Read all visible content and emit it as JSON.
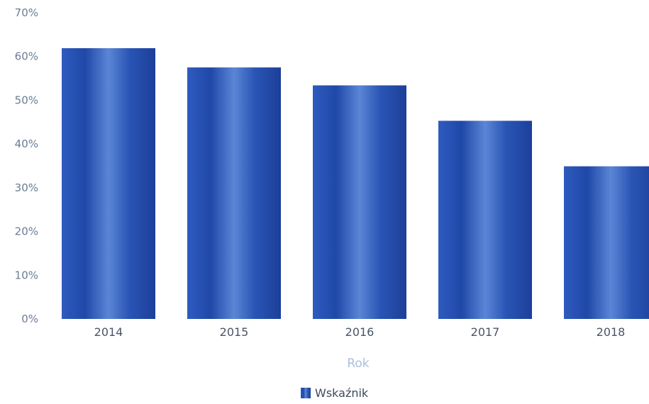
{
  "chart_data": {
    "type": "bar",
    "title": "",
    "xlabel": "Rok",
    "ylabel": "",
    "categories": [
      "2014",
      "2015",
      "2016",
      "2017",
      "2018"
    ],
    "series": [
      {
        "name": "Wskaźnik",
        "values": [
          61.9,
          57.5,
          53.4,
          45.3,
          34.9
        ]
      }
    ],
    "ylim": [
      0,
      70
    ],
    "yticks": [
      "0%",
      "10%",
      "20%",
      "30%",
      "40%",
      "50%",
      "60%",
      "70%"
    ],
    "grid": false,
    "legend_position": "bottom-center",
    "bar_color": "#2a55b5"
  }
}
